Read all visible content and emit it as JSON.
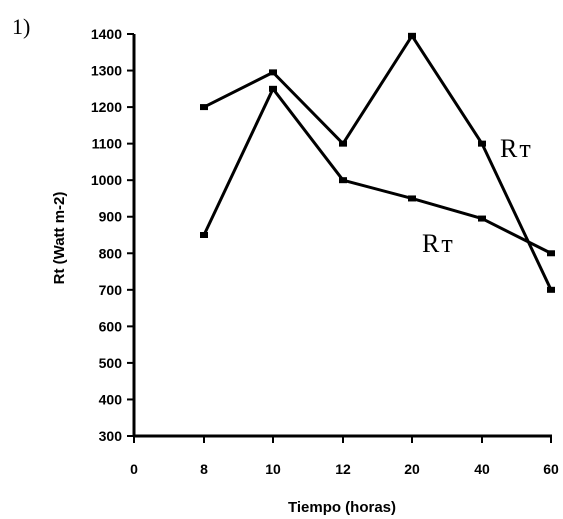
{
  "panel_label": "1)",
  "chart_data": {
    "type": "line",
    "title": "",
    "xlabel": "Tiempo (horas)",
    "ylabel": "Rt (Watt m-2)",
    "categories": [
      "0",
      "8",
      "10",
      "12",
      "20",
      "40",
      "60"
    ],
    "ylim": [
      300,
      1400
    ],
    "yticks": [
      300,
      400,
      500,
      600,
      700,
      800,
      900,
      1000,
      1100,
      1200,
      1300,
      1400
    ],
    "series": [
      {
        "name": "Rт",
        "x": [
          "8",
          "10",
          "12",
          "20",
          "40",
          "60"
        ],
        "values": [
          1200,
          1295,
          1100,
          1395,
          1100,
          700
        ],
        "color": "#000000"
      },
      {
        "name": "Rт",
        "x": [
          "8",
          "10",
          "12",
          "20",
          "40",
          "60"
        ],
        "values": [
          850,
          1250,
          1000,
          950,
          895,
          800
        ],
        "color": "#000000"
      }
    ],
    "grid": false,
    "legend": "inline labels"
  }
}
